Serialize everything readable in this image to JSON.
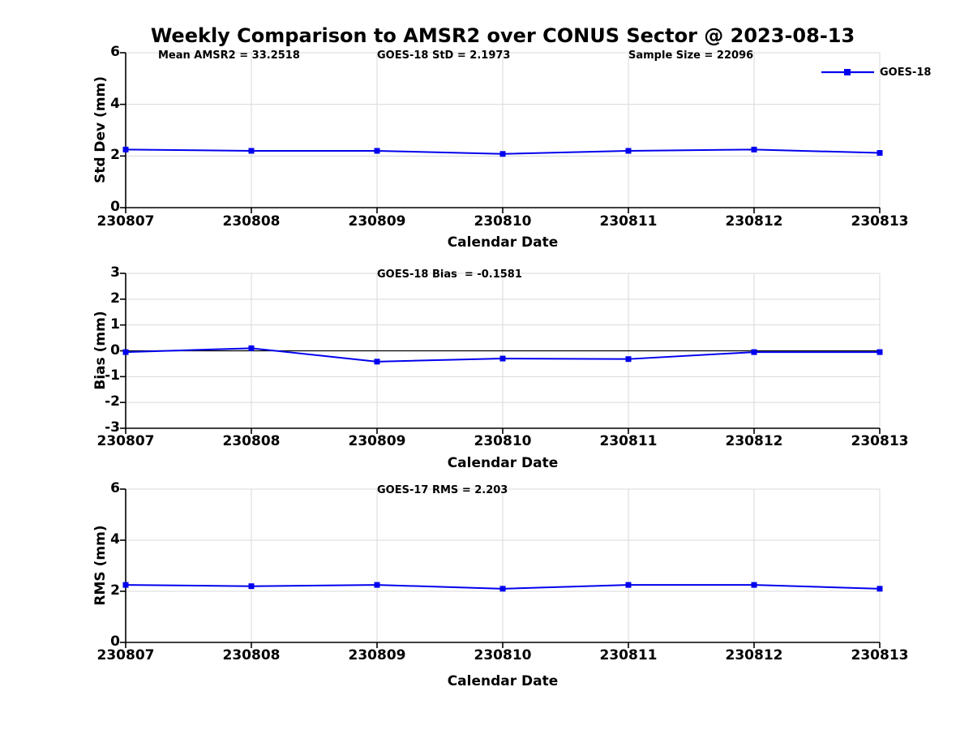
{
  "figure": {
    "title": "Weekly Comparison to AMSR2 over CONUS Sector @ 2023-08-13",
    "legend": {
      "label": "GOES-18"
    },
    "colors": {
      "line": "#0000ee",
      "grid": "#d9d9d9",
      "axis": "#000000",
      "text": "#000000",
      "background": "#ffffff"
    }
  },
  "chart_data": [
    {
      "type": "line",
      "panel": "std-dev",
      "ylabel": "Std Dev (mm)",
      "xlabel": "Calendar Date",
      "categories": [
        "230807",
        "230808",
        "230809",
        "230810",
        "230811",
        "230812",
        "230813"
      ],
      "series": [
        {
          "name": "GOES-18",
          "values": [
            2.25,
            2.2,
            2.2,
            2.08,
            2.2,
            2.25,
            2.12
          ]
        }
      ],
      "ylim": [
        0,
        6
      ],
      "yticks": [
        0,
        2,
        4,
        6
      ],
      "grid": true,
      "legend_position": "upper-right",
      "annotations": [
        "Mean AMSR2 = 33.2518",
        "GOES-18 StD = 2.1973",
        "Sample Size = 22096"
      ]
    },
    {
      "type": "line",
      "panel": "bias",
      "ylabel": "Bias (mm)",
      "xlabel": "Calendar Date",
      "categories": [
        "230807",
        "230808",
        "230809",
        "230810",
        "230811",
        "230812",
        "230813"
      ],
      "series": [
        {
          "name": "GOES-18",
          "values": [
            -0.05,
            0.1,
            -0.42,
            -0.3,
            -0.32,
            -0.05,
            -0.05
          ]
        }
      ],
      "ylim": [
        -3,
        3
      ],
      "yticks": [
        3,
        2,
        1,
        0,
        -1,
        -2,
        -3
      ],
      "grid": true,
      "zero_line": true,
      "annotations": [
        "GOES-18 Bias  = -0.1581"
      ]
    },
    {
      "type": "line",
      "panel": "rms",
      "ylabel": "RMS (mm)",
      "xlabel": "Calendar Date",
      "categories": [
        "230807",
        "230808",
        "230809",
        "230810",
        "230811",
        "230812",
        "230813"
      ],
      "series": [
        {
          "name": "GOES-18",
          "values": [
            2.25,
            2.2,
            2.25,
            2.1,
            2.25,
            2.25,
            2.1
          ]
        }
      ],
      "ylim": [
        0,
        6
      ],
      "yticks": [
        0,
        2,
        4,
        6
      ],
      "grid": true,
      "annotations": [
        "GOES-17 RMS = 2.203"
      ]
    }
  ]
}
